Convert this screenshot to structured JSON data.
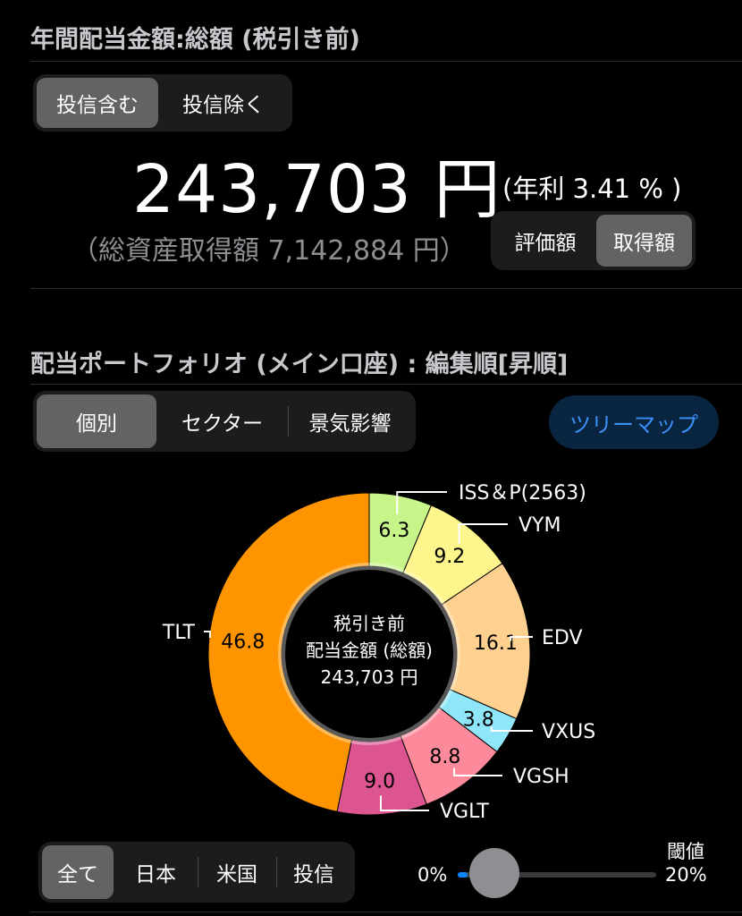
{
  "header": {
    "title": "年間配当金額:総額 (税引き前)"
  },
  "toggle_invest": {
    "items": [
      "投信含む",
      "投信除く"
    ],
    "selected": 0
  },
  "amount": {
    "value": "243,703 円",
    "rate": "(年利 3.41 % )",
    "total": "（総資産取得額 7,142,884 円）"
  },
  "toggle_basis": {
    "items": [
      "評価額",
      "取得額"
    ],
    "selected": 1
  },
  "portfolio": {
    "title": "配当ポートフォリオ (メイン口座) : 編集順[昇順]"
  },
  "view_tabs": {
    "items": [
      "個別",
      "セクター",
      "景気影響"
    ],
    "selected": 0
  },
  "treemap_button": "ツリーマップ",
  "chart_data": {
    "type": "pie",
    "center_text": [
      "税引き前",
      "配当金額 (総額)",
      "243,703 円"
    ],
    "slices": [
      {
        "name": "ISS＆P(2563)",
        "value": 6.3,
        "color": "#c8f58a"
      },
      {
        "name": "VYM",
        "value": 9.2,
        "color": "#fef58c"
      },
      {
        "name": "EDV",
        "value": 16.1,
        "color": "#fed190"
      },
      {
        "name": "VXUS",
        "value": 3.8,
        "color": "#8fe6f8"
      },
      {
        "name": "VGSH",
        "value": 8.8,
        "color": "#fd8a9a"
      },
      {
        "name": "VGLT",
        "value": 9.0,
        "color": "#dc5590"
      },
      {
        "name": "TLT",
        "value": 46.8,
        "color": "#fe9500"
      }
    ]
  },
  "region_tabs": {
    "items": [
      "全て",
      "日本",
      "米国",
      "投信"
    ],
    "selected": 0
  },
  "threshold": {
    "label": "閾値",
    "min": "0%",
    "max": "20%",
    "value": 0.05
  },
  "colors": {
    "accent": "#0a84ff"
  }
}
